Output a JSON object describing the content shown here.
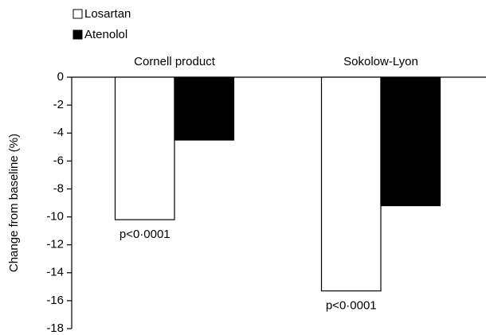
{
  "chart_data": {
    "type": "bar",
    "y_label": "Change from baseline (%)",
    "categories": [
      "Cornell product",
      "Sokolow-Lyon"
    ],
    "series": [
      {
        "name": "Losartan",
        "color": "#ffffff",
        "values": [
          -10.2,
          -15.3
        ]
      },
      {
        "name": "Atenolol",
        "color": "#000000",
        "values": [
          -4.5,
          -9.2
        ]
      }
    ],
    "annotations": [
      "p<0·0001",
      "p<0·0001"
    ],
    "ylim": [
      -18,
      0
    ],
    "yticks": [
      0,
      -2,
      -4,
      -6,
      -8,
      -10,
      -12,
      -14,
      -16,
      -18
    ]
  }
}
